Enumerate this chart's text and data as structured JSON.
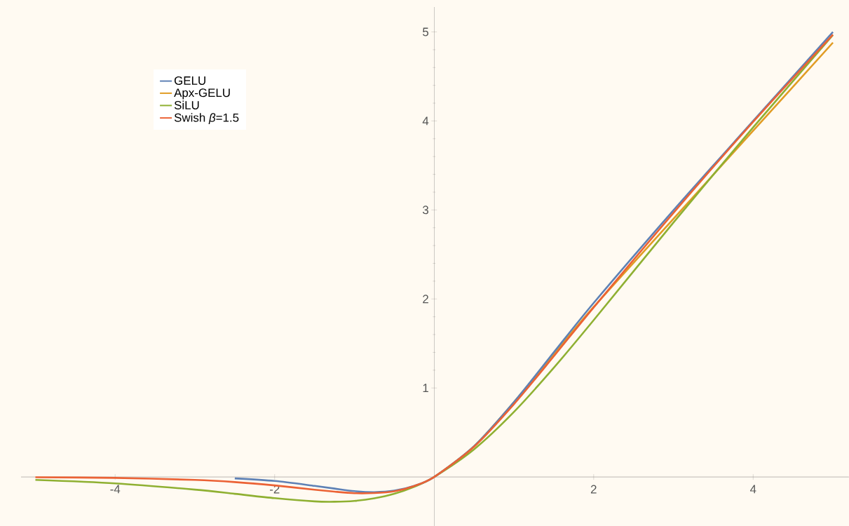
{
  "chart_data": {
    "type": "line",
    "x": [
      -5,
      -4,
      -3,
      -2.5,
      -2,
      -1.5,
      -1.25,
      -1,
      -0.75,
      -0.5,
      -0.25,
      0,
      0.5,
      1,
      1.5,
      2,
      3,
      4,
      5
    ],
    "series": [
      {
        "name": "GELU",
        "color": "#5e81b5",
        "values": [
          null,
          null,
          null,
          -0.016,
          -0.045,
          -0.1,
          -0.13,
          -0.159,
          -0.17,
          -0.154,
          -0.1,
          0,
          0.346,
          0.841,
          1.4,
          1.955,
          2.996,
          4.0,
          5.0
        ]
      },
      {
        "name": "Apx-GELU",
        "color": "#e19c24",
        "values": [
          null,
          null,
          null,
          null,
          null,
          null,
          null,
          null,
          null,
          null,
          null,
          0,
          0.345,
          0.84,
          1.38,
          1.91,
          2.9,
          3.89,
          4.88
        ]
      },
      {
        "name": "SiLU",
        "color": "#8fb032",
        "values": [
          -0.033,
          -0.072,
          -0.142,
          -0.189,
          -0.238,
          -0.274,
          -0.278,
          -0.269,
          -0.24,
          -0.189,
          -0.11,
          0,
          0.311,
          0.731,
          1.227,
          1.762,
          2.858,
          3.928,
          4.966
        ]
      },
      {
        "name": "Swish *β*=1.5",
        "color": "#eb6235",
        "values": [
          -0.003,
          -0.01,
          -0.033,
          -0.057,
          -0.095,
          -0.143,
          -0.165,
          -0.182,
          -0.18,
          -0.16,
          -0.101,
          0,
          0.34,
          0.818,
          1.356,
          1.905,
          2.967,
          3.99,
          4.97
        ]
      }
    ],
    "xlim": [
      -5.18,
      5.2
    ],
    "ylim": [
      -0.55,
      5.28
    ],
    "xticks": [
      -4,
      -2,
      2,
      4
    ],
    "yticks": [
      1,
      2,
      3,
      4,
      5
    ],
    "legend": "top left",
    "marker": "none",
    "line_style": "solid"
  }
}
